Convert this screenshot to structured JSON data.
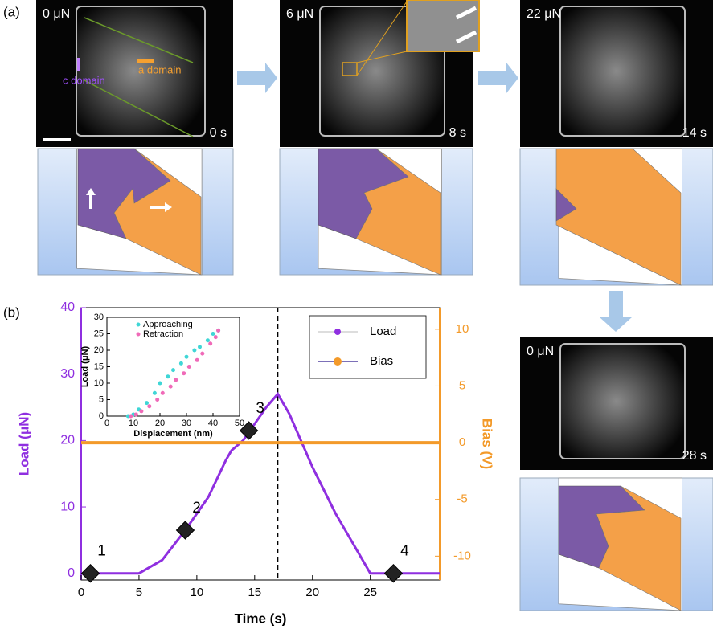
{
  "labels": [
    "(a)",
    "(b)"
  ],
  "panels": [
    {
      "load": "0 μN",
      "time": "0 s"
    },
    {
      "load": "6 μN",
      "time": "8 s"
    },
    {
      "load": "22 μN",
      "time": "14 s"
    },
    {
      "load": "0 μN",
      "time": "28 s"
    }
  ],
  "domain_labels": [
    "c domain",
    "a domain"
  ],
  "chart_data": [
    {
      "type": "line",
      "xlabel": "Time (s)",
      "ylabel": "Load (μN)",
      "y2label": "Bias (V)",
      "x": [
        0,
        5,
        5.5,
        7,
        9,
        11,
        12.5,
        13,
        14,
        15,
        16,
        17,
        18,
        20,
        22,
        24,
        25,
        31
      ],
      "series": [
        {
          "name": "Load",
          "color": "#8f2fe0",
          "values": [
            0,
            0,
            0.5,
            2,
            6.5,
            11.5,
            17,
            18.5,
            20,
            22.5,
            25,
            27,
            24,
            16,
            9,
            3,
            0,
            0
          ]
        },
        {
          "name": "Bias",
          "color": "#f39a2a",
          "axis": "y2",
          "values": [
            0,
            0,
            0,
            0,
            0,
            0,
            0,
            0,
            0,
            0,
            0,
            0,
            0,
            0,
            0,
            0,
            0,
            0
          ]
        }
      ],
      "points": {
        "x": [
          0.8,
          9,
          14.5,
          27
        ],
        "y": [
          0,
          6.5,
          21.5,
          0
        ],
        "labels": [
          "1",
          "2",
          "3",
          "4"
        ]
      },
      "vline": 17,
      "xlim": [
        0,
        31
      ],
      "ylim": [
        -1,
        40
      ],
      "y2lim": [
        -12.1,
        11.9
      ],
      "xticks": [
        0,
        5,
        10,
        15,
        20,
        25
      ],
      "yticks": [
        0,
        10,
        20,
        30,
        40
      ],
      "y2ticks": [
        -10,
        -5,
        0,
        5,
        10
      ]
    },
    {
      "type": "scatter",
      "xlabel": "Displacement (nm)",
      "ylabel": "Load (μN)",
      "series": [
        {
          "name": "Approaching",
          "color": "#3fd6d6",
          "x": [
            8,
            10,
            12,
            15,
            18,
            20,
            23,
            25,
            28,
            30,
            33,
            35,
            38,
            40,
            42
          ],
          "values": [
            0,
            0.5,
            2,
            4,
            7,
            10,
            12,
            14,
            16,
            18,
            20,
            21,
            23,
            25,
            26
          ]
        },
        {
          "name": "Retraction",
          "color": "#f06ab8",
          "x": [
            9,
            11,
            13,
            16,
            19,
            21,
            24,
            26,
            29,
            31,
            34,
            36,
            39,
            41,
            42
          ],
          "values": [
            0,
            0.5,
            1.5,
            3,
            5,
            7,
            9,
            11,
            13,
            15,
            17,
            19,
            22,
            24,
            26
          ]
        }
      ],
      "xlim": [
        0,
        50
      ],
      "ylim": [
        0,
        30
      ],
      "xticks": [
        0,
        10,
        20,
        30,
        40,
        50
      ],
      "yticks": [
        0,
        5,
        10,
        15,
        20,
        25,
        30
      ]
    }
  ]
}
